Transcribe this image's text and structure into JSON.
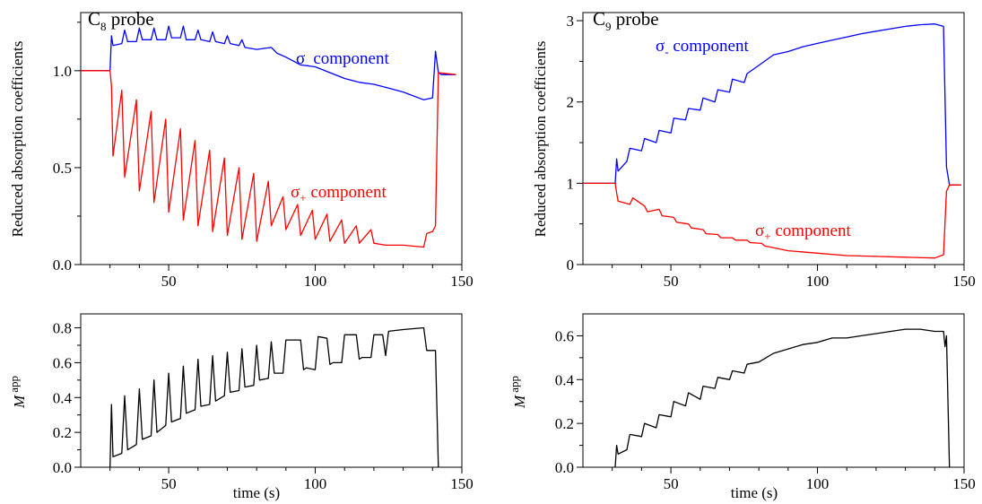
{
  "figure": {
    "panels": [
      {
        "id": "c8-top",
        "title_main": "C",
        "title_sub": "8",
        "title_rest": " probe",
        "ylabel": "Reduced absorption coefficients",
        "xlabel": "",
        "xlim": [
          20,
          150
        ],
        "ylim": [
          0,
          1.3
        ],
        "xticks": [
          50,
          100,
          150
        ],
        "yticks": [
          0.0,
          0.5,
          1.0
        ],
        "ytick_labels": [
          "0.0",
          "0.5",
          "1.0"
        ],
        "annotations": [
          {
            "pre": "σ",
            "sub": "-",
            "post": " component",
            "color": "#0000ff"
          },
          {
            "pre": "σ",
            "sub": "+",
            "post": " component",
            "color": "#ff0000"
          }
        ]
      },
      {
        "id": "c9-top",
        "title_main": "C",
        "title_sub": "9",
        "title_rest": " probe",
        "ylabel": "Reduced absorption coefficients",
        "xlabel": "",
        "xlim": [
          20,
          150
        ],
        "ylim": [
          0,
          3.1
        ],
        "xticks": [
          50,
          100,
          150
        ],
        "yticks": [
          0,
          1,
          2,
          3
        ],
        "ytick_labels": [
          "0",
          "1",
          "2",
          "3"
        ],
        "annotations": [
          {
            "pre": "σ",
            "sub": "-",
            "post": " component",
            "color": "#0000ff"
          },
          {
            "pre": "σ",
            "sub": "+",
            "post": " component",
            "color": "#ff0000"
          }
        ]
      },
      {
        "id": "c8-bottom",
        "ylabel_main": "M",
        "ylabel_sup": "app",
        "xlabel": "time (s)",
        "xlim": [
          20,
          150
        ],
        "ylim": [
          0,
          0.88
        ],
        "xticks": [
          50,
          100,
          150
        ],
        "yticks": [
          0.0,
          0.2,
          0.4,
          0.6,
          0.8
        ],
        "ytick_labels": [
          "0.0",
          "0.2",
          "0.4",
          "0.6",
          "0.8"
        ]
      },
      {
        "id": "c9-bottom",
        "ylabel_main": "M",
        "ylabel_sup": "app",
        "xlabel": "time (s)",
        "xlim": [
          20,
          150
        ],
        "ylim": [
          0,
          0.7
        ],
        "xticks": [
          50,
          100,
          150
        ],
        "yticks": [
          0.0,
          0.2,
          0.4,
          0.6
        ],
        "ytick_labels": [
          "0.0",
          "0.2",
          "0.4",
          "0.6"
        ]
      }
    ]
  },
  "chart_data": [
    {
      "type": "line",
      "title": "C8 probe",
      "ylabel": "Reduced absorption coefficients",
      "xlim": [
        20,
        150
      ],
      "ylim": [
        0,
        1.3
      ],
      "series": [
        {
          "name": "σ- component",
          "color": "#0000ff",
          "x": [
            20,
            30,
            30.5,
            31,
            34,
            35,
            36,
            39,
            40,
            41,
            44,
            45,
            46,
            49,
            50,
            51,
            54,
            55,
            56,
            59,
            60,
            61,
            64,
            65,
            66,
            69,
            70,
            71,
            74,
            75,
            76,
            80,
            85,
            87,
            90,
            95,
            100,
            105,
            110,
            115,
            120,
            125,
            130,
            137,
            140,
            141,
            142,
            143,
            148
          ],
          "y": [
            1.0,
            1.0,
            1.18,
            1.13,
            1.14,
            1.21,
            1.15,
            1.15,
            1.22,
            1.16,
            1.16,
            1.22,
            1.16,
            1.16,
            1.23,
            1.17,
            1.17,
            1.23,
            1.16,
            1.16,
            1.21,
            1.16,
            1.15,
            1.2,
            1.15,
            1.14,
            1.18,
            1.14,
            1.13,
            1.16,
            1.12,
            1.11,
            1.12,
            1.09,
            1.07,
            1.03,
            1.02,
            0.99,
            0.96,
            0.94,
            0.93,
            0.91,
            0.89,
            0.85,
            0.86,
            1.1,
            0.99,
            0.98,
            0.98
          ]
        },
        {
          "name": "σ+ component",
          "color": "#ff0000",
          "x": [
            20,
            30,
            30.5,
            31,
            34,
            35,
            39,
            40,
            44,
            45,
            49,
            50,
            54,
            55,
            59,
            60,
            64,
            65,
            69,
            70,
            74,
            75,
            79,
            80,
            84,
            85,
            89,
            90,
            94,
            95,
            99,
            100,
            104,
            105,
            109,
            110,
            114,
            115,
            119,
            120,
            124,
            130,
            137,
            138,
            140,
            141,
            142,
            148
          ],
          "y": [
            1.0,
            1.0,
            0.92,
            0.56,
            0.9,
            0.45,
            0.85,
            0.38,
            0.79,
            0.32,
            0.75,
            0.27,
            0.7,
            0.23,
            0.64,
            0.2,
            0.59,
            0.17,
            0.55,
            0.15,
            0.5,
            0.13,
            0.47,
            0.12,
            0.43,
            0.2,
            0.35,
            0.18,
            0.31,
            0.15,
            0.28,
            0.13,
            0.26,
            0.12,
            0.23,
            0.11,
            0.2,
            0.11,
            0.18,
            0.11,
            0.1,
            0.1,
            0.09,
            0.16,
            0.17,
            0.2,
            0.99,
            0.98
          ]
        }
      ]
    },
    {
      "type": "line",
      "title": "C9 probe",
      "ylabel": "Reduced absorption coefficients",
      "xlim": [
        20,
        150
      ],
      "ylim": [
        0,
        3.1
      ],
      "series": [
        {
          "name": "σ- component",
          "color": "#0000ff",
          "x": [
            20,
            31,
            31.5,
            32,
            35,
            36,
            40,
            41,
            45,
            46,
            50,
            51,
            55,
            56,
            60,
            61,
            65,
            66,
            70,
            71,
            75,
            76,
            80,
            85,
            90,
            95,
            100,
            105,
            110,
            115,
            120,
            125,
            130,
            135,
            140,
            143,
            144,
            145,
            149
          ],
          "y": [
            1.0,
            1.0,
            1.3,
            1.15,
            1.27,
            1.43,
            1.4,
            1.55,
            1.5,
            1.65,
            1.62,
            1.8,
            1.78,
            1.92,
            1.9,
            2.05,
            2.0,
            2.15,
            2.12,
            2.28,
            2.24,
            2.35,
            2.45,
            2.58,
            2.62,
            2.68,
            2.72,
            2.76,
            2.8,
            2.84,
            2.87,
            2.9,
            2.93,
            2.95,
            2.96,
            2.93,
            1.2,
            0.98,
            0.98
          ]
        },
        {
          "name": "σ+ component",
          "color": "#ff0000",
          "x": [
            20,
            31,
            31.5,
            32,
            36,
            37,
            41,
            42,
            46,
            47,
            51,
            52,
            56,
            57,
            61,
            62,
            66,
            67,
            71,
            72,
            76,
            77,
            81,
            82,
            86,
            90,
            100,
            110,
            120,
            130,
            140,
            143,
            144,
            145,
            149
          ],
          "y": [
            1.0,
            1.0,
            0.88,
            0.78,
            0.74,
            0.82,
            0.72,
            0.65,
            0.68,
            0.6,
            0.58,
            0.52,
            0.5,
            0.45,
            0.43,
            0.38,
            0.37,
            0.33,
            0.33,
            0.3,
            0.3,
            0.27,
            0.26,
            0.23,
            0.2,
            0.17,
            0.14,
            0.11,
            0.1,
            0.09,
            0.08,
            0.12,
            0.9,
            0.98,
            0.98
          ]
        }
      ]
    },
    {
      "type": "line",
      "xlabel": "time (s)",
      "ylabel": "M app",
      "xlim": [
        20,
        150
      ],
      "ylim": [
        0,
        0.88
      ],
      "series": [
        {
          "name": "",
          "color": "#000000",
          "x": [
            30,
            30.5,
            31,
            34,
            35,
            36,
            39,
            40,
            41,
            44,
            45,
            46,
            49,
            50,
            51,
            54,
            55,
            56,
            59,
            60,
            61,
            64,
            65,
            66,
            69,
            70,
            71,
            74,
            75,
            76,
            79,
            80,
            81,
            84,
            85,
            86,
            89,
            90,
            95,
            96,
            97,
            100,
            101,
            104,
            105,
            106,
            109,
            110,
            114,
            115,
            116,
            119,
            120,
            123,
            124,
            125,
            130,
            137,
            138,
            141,
            142
          ],
          "y": [
            0.0,
            0.36,
            0.06,
            0.08,
            0.41,
            0.1,
            0.13,
            0.45,
            0.16,
            0.18,
            0.5,
            0.2,
            0.24,
            0.54,
            0.26,
            0.28,
            0.58,
            0.31,
            0.33,
            0.62,
            0.35,
            0.36,
            0.64,
            0.38,
            0.41,
            0.66,
            0.43,
            0.44,
            0.68,
            0.46,
            0.47,
            0.7,
            0.5,
            0.51,
            0.72,
            0.54,
            0.54,
            0.73,
            0.73,
            0.56,
            0.57,
            0.56,
            0.75,
            0.74,
            0.59,
            0.6,
            0.6,
            0.76,
            0.76,
            0.62,
            0.63,
            0.63,
            0.76,
            0.76,
            0.64,
            0.78,
            0.79,
            0.8,
            0.67,
            0.67,
            0.0
          ]
        }
      ]
    },
    {
      "type": "line",
      "xlabel": "time (s)",
      "ylabel": "M app",
      "xlim": [
        20,
        150
      ],
      "ylim": [
        0,
        0.7
      ],
      "series": [
        {
          "name": "",
          "color": "#000000",
          "x": [
            31,
            31.5,
            32,
            35,
            36,
            40,
            41,
            45,
            46,
            50,
            51,
            55,
            56,
            60,
            61,
            65,
            66,
            70,
            71,
            75,
            76,
            80,
            85,
            90,
            95,
            100,
            105,
            110,
            115,
            120,
            125,
            130,
            135,
            140,
            143,
            143.5,
            144,
            145
          ],
          "y": [
            0.0,
            0.1,
            0.06,
            0.08,
            0.15,
            0.14,
            0.2,
            0.18,
            0.24,
            0.23,
            0.3,
            0.28,
            0.34,
            0.31,
            0.37,
            0.36,
            0.41,
            0.4,
            0.44,
            0.43,
            0.47,
            0.48,
            0.52,
            0.54,
            0.56,
            0.57,
            0.59,
            0.59,
            0.6,
            0.61,
            0.62,
            0.63,
            0.63,
            0.62,
            0.62,
            0.55,
            0.6,
            0.0
          ]
        }
      ]
    }
  ]
}
